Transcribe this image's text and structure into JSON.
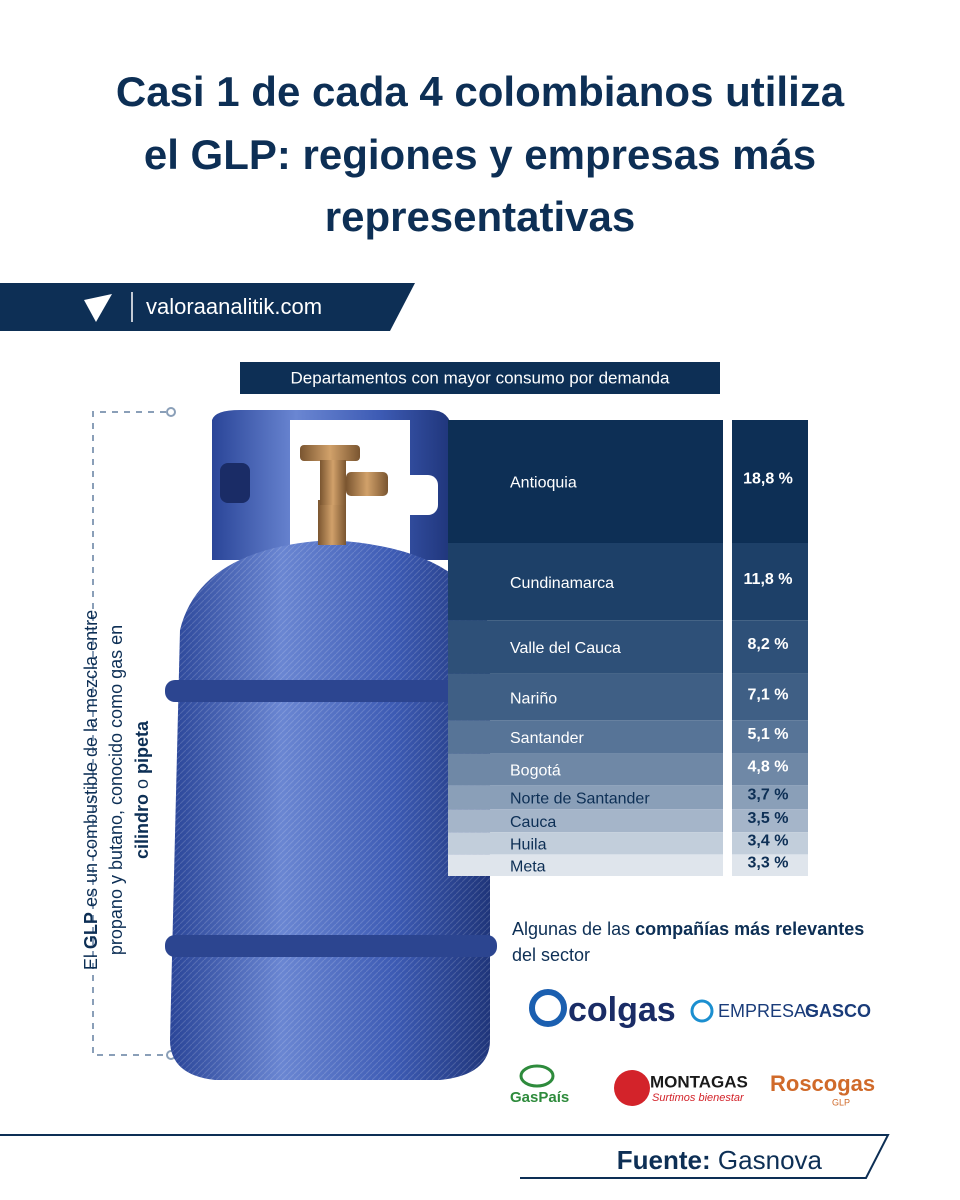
{
  "chart_data": {
    "type": "stacked-rows",
    "title_lines": [
      "Casi 1 de cada 4 colombianos utiliza",
      "el GLP: regiones y empresas más",
      "representativas"
    ],
    "website": "valoraanalitik.com",
    "subtitle": "Departamentos con mayor consumo por demanda",
    "categories": [
      "Antioquia",
      "Cundinamarca",
      "Valle del Cauca",
      "Nariño",
      "Santander",
      "Bogotá",
      "Norte de Santander",
      "Cauca",
      "Huila",
      "Meta"
    ],
    "values": [
      18.8,
      11.8,
      8.2,
      7.1,
      5.1,
      4.8,
      3.7,
      3.5,
      3.4,
      3.3
    ],
    "value_labels": [
      "18,8 %",
      "11,8 %",
      "8,2 %",
      "7,1 %",
      "5,1 %",
      "4,8 %",
      "3,7 %",
      "3,5 %",
      "3,4 %",
      "3,3 %"
    ],
    "colors": [
      "#0d2f55",
      "#1d4068",
      "#2e5078",
      "#3f5f85",
      "#577497",
      "#6f88a6",
      "#8a9fb8",
      "#a5b5c9",
      "#c2cedb",
      "#dfe5ec"
    ],
    "side_note": [
      [
        "El ",
        "GLP",
        " es un combustible de la mezcla entre"
      ],
      [
        "propano y butano, conocido como gas en"
      ],
      [
        "cilindro",
        " o ",
        "pipeta"
      ]
    ],
    "companies_note": [
      [
        "Algunas de las ",
        "compañías más relevantes"
      ],
      [
        "del sector"
      ]
    ],
    "logos": [
      "colgas",
      "EMPRESAS",
      "GASCO",
      "GasPaís",
      "MONTAGAS",
      "Surtimos bienestar",
      "Roscogas",
      "GLP"
    ],
    "source_label": "Fuente:",
    "source": "Gasnova"
  }
}
